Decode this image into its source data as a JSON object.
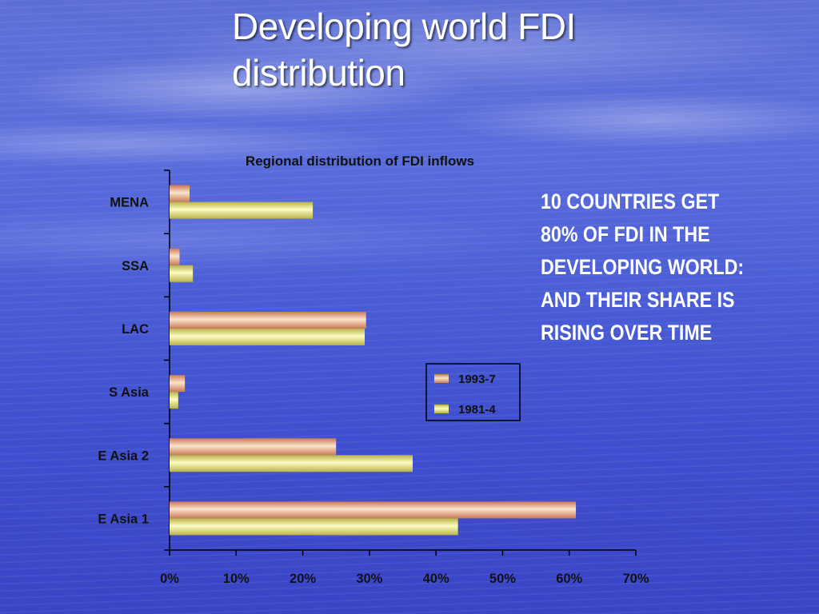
{
  "slide": {
    "title": "Developing world FDI distribution",
    "callout_lines": [
      "10 COUNTRIES GET",
      "80% OF FDI IN THE",
      "DEVELOPING WORLD:",
      "AND THEIR SHARE IS",
      "RISING OVER TIME"
    ]
  },
  "colors": {
    "series_1993_7": "#e8a57c",
    "series_1981_4": "#e6e37a"
  },
  "chart_data": {
    "type": "bar",
    "orientation": "horizontal",
    "title": "Regional distribution of FDI inflows",
    "categories": [
      "MENA",
      "SSA",
      "LAC",
      "S Asia",
      "E Asia 2",
      "E Asia 1"
    ],
    "series": [
      {
        "name": "1993-7",
        "values": [
          3,
          1.5,
          29.5,
          2.3,
          25,
          61
        ]
      },
      {
        "name": "1981-4",
        "values": [
          21.5,
          3.5,
          29.3,
          1.3,
          36.5,
          43.3
        ]
      }
    ],
    "xlim": [
      0,
      70
    ],
    "xticks": [
      "0%",
      "10%",
      "20%",
      "30%",
      "40%",
      "50%",
      "60%",
      "70%"
    ],
    "legend_position": "right",
    "grid": false
  }
}
